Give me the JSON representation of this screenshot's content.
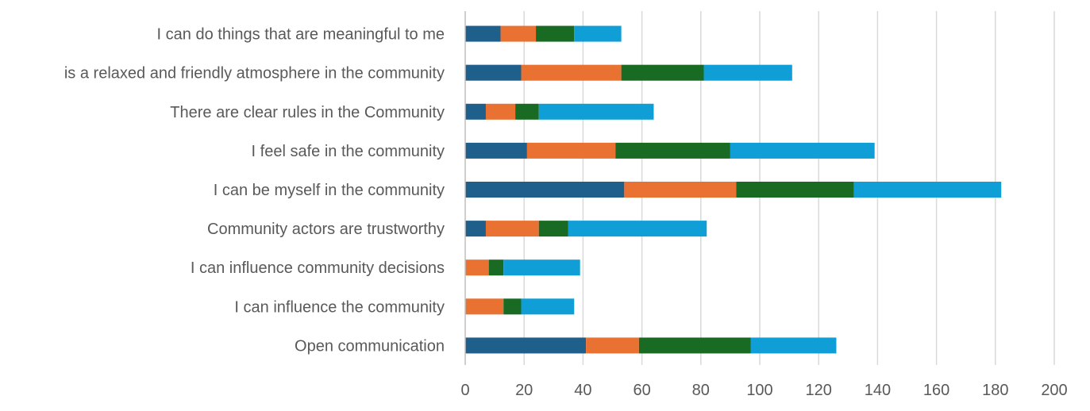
{
  "chart_data": {
    "type": "bar",
    "orientation": "horizontal",
    "stacked": true,
    "categories": [
      "I can do things that are meaningful to me",
      "is a relaxed and friendly atmosphere in the community",
      "There are clear rules in the Community",
      "I feel safe in the community",
      "I can be myself in the community",
      "Community actors are trustworthy",
      "I can influence community decisions",
      "I can influence the community",
      "Open communication"
    ],
    "series": [
      {
        "color": "#1f5f8b",
        "values": [
          12,
          19,
          7,
          21,
          54,
          7,
          0,
          0,
          41
        ]
      },
      {
        "color": "#e97132",
        "values": [
          12,
          34,
          10,
          30,
          38,
          18,
          8,
          13,
          18
        ]
      },
      {
        "color": "#196b24",
        "values": [
          13,
          28,
          8,
          39,
          40,
          10,
          5,
          6,
          38
        ]
      },
      {
        "color": "#0f9ed5",
        "values": [
          16,
          30,
          39,
          49,
          50,
          47,
          26,
          18,
          29
        ]
      }
    ],
    "xlim": [
      0,
      200
    ],
    "xticks": [
      "0",
      "20",
      "40",
      "60",
      "80",
      "100",
      "120",
      "140",
      "160",
      "180",
      "200"
    ],
    "title": "",
    "xlabel": "",
    "ylabel": "",
    "grid": "vertical",
    "legend": "none"
  }
}
